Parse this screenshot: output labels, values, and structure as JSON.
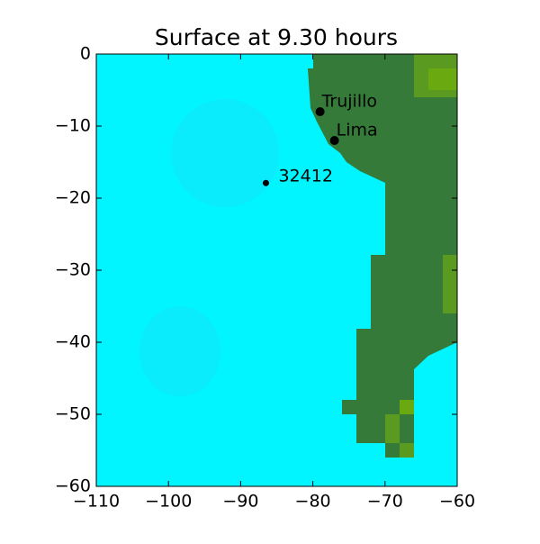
{
  "chart_data": {
    "type": "map",
    "title": "Surface at 9.30 hours",
    "xlim": [
      -110,
      -60
    ],
    "xticks": [
      {
        "value": -110,
        "label": "−110"
      },
      {
        "value": -100,
        "label": "−100"
      },
      {
        "value": -90,
        "label": "−90"
      },
      {
        "value": -80,
        "label": "−80"
      },
      {
        "value": -70,
        "label": "−70"
      },
      {
        "value": -60,
        "label": "−60"
      }
    ],
    "ylim": [
      -60,
      0
    ],
    "yticks": [
      0,
      {
        "value": -10,
        "label": "−10"
      },
      {
        "value": -20,
        "label": "−20"
      },
      {
        "value": -30,
        "label": "−30"
      },
      {
        "value": -40,
        "label": "−40"
      },
      {
        "value": -50,
        "label": "−50"
      },
      {
        "value": -60,
        "label": "−60"
      }
    ],
    "markers": {
      "names": [
        "Trujillo",
        "Lima",
        "32412"
      ],
      "x": [
        -79,
        -77,
        -86.5
      ],
      "y": [
        -8,
        -12,
        -17.9
      ]
    }
  }
}
